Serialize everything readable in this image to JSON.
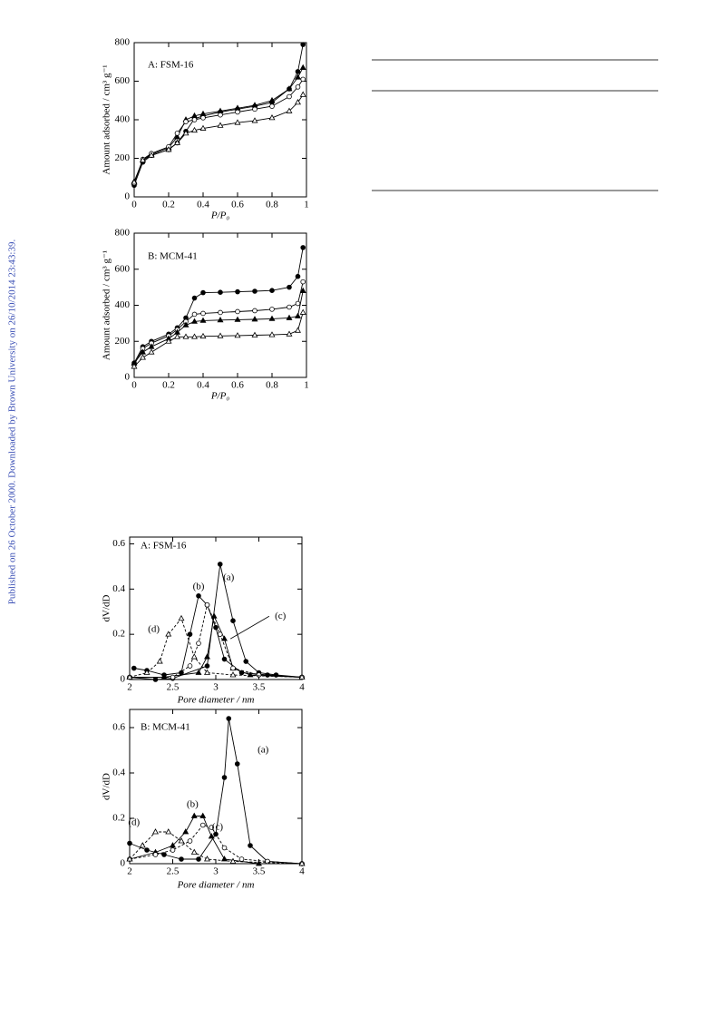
{
  "side_note": "Published on 26 October 2000. Downloaded by Brown University on 26/10/2014 23:43:39.",
  "chart_data": [
    {
      "type": "line",
      "title": "A: FSM-16",
      "xlabel": "P/P₀",
      "ylabel": "Amount adsorbed / cm³ g⁻¹",
      "xlim": [
        0,
        1
      ],
      "ylim": [
        0,
        800
      ],
      "xticks": [
        0,
        0.2,
        0.4,
        0.6,
        0.8,
        1
      ],
      "yticks": [
        0,
        200,
        400,
        600,
        800
      ],
      "series": [
        {
          "color": "#000000",
          "marker": "filled-circle",
          "dashed": false,
          "x": [
            0,
            0.05,
            0.1,
            0.2,
            0.25,
            0.3,
            0.35,
            0.4,
            0.5,
            0.6,
            0.7,
            0.8,
            0.9,
            0.95,
            0.98
          ],
          "values": [
            60,
            180,
            215,
            245,
            280,
            340,
            405,
            420,
            440,
            455,
            470,
            490,
            560,
            650,
            790
          ]
        },
        {
          "color": "#000000",
          "marker": "filled-triangle",
          "dashed": false,
          "x": [
            0,
            0.05,
            0.1,
            0.2,
            0.25,
            0.3,
            0.35,
            0.4,
            0.5,
            0.6,
            0.7,
            0.8,
            0.9,
            0.95,
            0.98
          ],
          "values": [
            80,
            190,
            220,
            255,
            310,
            400,
            420,
            430,
            445,
            460,
            475,
            500,
            560,
            620,
            670
          ]
        },
        {
          "color": "#000000",
          "marker": "open-circle",
          "dashed": false,
          "x": [
            0,
            0.05,
            0.1,
            0.2,
            0.25,
            0.3,
            0.35,
            0.4,
            0.5,
            0.6,
            0.7,
            0.8,
            0.9,
            0.95,
            0.98
          ],
          "values": [
            70,
            195,
            225,
            260,
            330,
            390,
            400,
            410,
            425,
            440,
            455,
            470,
            520,
            570,
            610
          ]
        },
        {
          "color": "#000000",
          "marker": "open-triangle",
          "dashed": false,
          "x": [
            0,
            0.05,
            0.1,
            0.2,
            0.25,
            0.3,
            0.35,
            0.4,
            0.5,
            0.6,
            0.7,
            0.8,
            0.9,
            0.95,
            0.98
          ],
          "values": [
            75,
            190,
            215,
            245,
            280,
            330,
            345,
            355,
            370,
            385,
            395,
            410,
            445,
            490,
            530
          ]
        }
      ]
    },
    {
      "type": "line",
      "title": "B: MCM-41",
      "xlabel": "P/P₀",
      "ylabel": "Amount adsorbed / cm³ g⁻¹",
      "xlim": [
        0,
        1
      ],
      "ylim": [
        0,
        800
      ],
      "xticks": [
        0,
        0.2,
        0.4,
        0.6,
        0.8,
        1
      ],
      "yticks": [
        0,
        200,
        400,
        600,
        800
      ],
      "series": [
        {
          "color": "#000000",
          "marker": "filled-circle",
          "dashed": false,
          "x": [
            0,
            0.05,
            0.1,
            0.2,
            0.25,
            0.3,
            0.35,
            0.4,
            0.5,
            0.6,
            0.7,
            0.8,
            0.9,
            0.95,
            0.98
          ],
          "values": [
            80,
            170,
            200,
            240,
            275,
            330,
            440,
            470,
            472,
            475,
            478,
            482,
            500,
            560,
            720
          ]
        },
        {
          "color": "#000000",
          "marker": "open-circle",
          "dashed": false,
          "x": [
            0,
            0.05,
            0.1,
            0.2,
            0.25,
            0.3,
            0.35,
            0.4,
            0.5,
            0.6,
            0.7,
            0.8,
            0.9,
            0.95,
            0.98
          ],
          "values": [
            70,
            160,
            190,
            230,
            265,
            310,
            350,
            355,
            360,
            365,
            370,
            378,
            390,
            410,
            530
          ]
        },
        {
          "color": "#000000",
          "marker": "filled-triangle",
          "dashed": false,
          "x": [
            0,
            0.05,
            0.1,
            0.2,
            0.25,
            0.3,
            0.35,
            0.4,
            0.5,
            0.6,
            0.7,
            0.8,
            0.9,
            0.95,
            0.98
          ],
          "values": [
            80,
            140,
            170,
            215,
            250,
            290,
            310,
            315,
            318,
            320,
            322,
            325,
            330,
            340,
            480
          ]
        },
        {
          "color": "#000000",
          "marker": "open-triangle",
          "dashed": false,
          "x": [
            0,
            0.05,
            0.1,
            0.2,
            0.25,
            0.3,
            0.35,
            0.4,
            0.5,
            0.6,
            0.7,
            0.8,
            0.9,
            0.95,
            0.98
          ],
          "values": [
            60,
            110,
            140,
            200,
            225,
            225,
            225,
            228,
            230,
            232,
            234,
            236,
            240,
            260,
            360
          ]
        }
      ]
    },
    {
      "type": "line",
      "title": "A: FSM-16",
      "xlabel": "Pore diameter / nm",
      "ylabel": "dV/dD",
      "xlim": [
        2,
        4
      ],
      "ylim": [
        0,
        0.63
      ],
      "xticks": [
        2,
        2.5,
        3,
        3.5,
        4
      ],
      "yticks": [
        0,
        0.2,
        0.4,
        0.6
      ],
      "annotations": [
        "(a)",
        "(b)",
        "(c)",
        "(d)"
      ],
      "series": [
        {
          "color": "#000000",
          "marker": "filled-circle",
          "dashed": false,
          "x": [
            2.0,
            2.3,
            2.5,
            2.9,
            3.05,
            3.2,
            3.35,
            3.5,
            3.7,
            4.0
          ],
          "values": [
            0.01,
            0.0,
            0.005,
            0.06,
            0.51,
            0.26,
            0.08,
            0.03,
            0.02,
            0.01
          ]
        },
        {
          "color": "#000000",
          "marker": "filled-circle",
          "dashed": false,
          "x": [
            2.05,
            2.2,
            2.4,
            2.6,
            2.7,
            2.8,
            2.9,
            3.0,
            3.1,
            3.3,
            3.6,
            4.0
          ],
          "values": [
            0.05,
            0.04,
            0.02,
            0.03,
            0.2,
            0.37,
            0.33,
            0.23,
            0.09,
            0.03,
            0.02,
            0.01
          ]
        },
        {
          "color": "#000000",
          "marker": "filled-triangle",
          "dashed": false,
          "x": [
            2.0,
            2.4,
            2.8,
            2.9,
            2.98,
            3.1,
            3.2,
            3.4,
            4.0
          ],
          "values": [
            0.01,
            0.01,
            0.03,
            0.1,
            0.28,
            0.18,
            0.05,
            0.02,
            0.01
          ]
        },
        {
          "color": "#000000",
          "marker": "open-circle",
          "dashed": true,
          "x": [
            2.0,
            2.5,
            2.7,
            2.8,
            2.9,
            3.05,
            3.2,
            3.5,
            4.0
          ],
          "values": [
            0.01,
            0.01,
            0.06,
            0.16,
            0.33,
            0.2,
            0.05,
            0.02,
            0.01
          ]
        },
        {
          "color": "#000000",
          "marker": "open-triangle",
          "dashed": true,
          "x": [
            2.0,
            2.2,
            2.35,
            2.45,
            2.6,
            2.75,
            2.9,
            3.2,
            4.0
          ],
          "values": [
            0.01,
            0.03,
            0.08,
            0.2,
            0.27,
            0.1,
            0.03,
            0.02,
            0.01
          ]
        }
      ]
    },
    {
      "type": "line",
      "title": "B: MCM-41",
      "xlabel": "Pore diameter / nm",
      "ylabel": "dV/dD",
      "xlim": [
        2,
        4
      ],
      "ylim": [
        0,
        0.68
      ],
      "xticks": [
        2,
        2.5,
        3,
        3.5,
        4
      ],
      "yticks": [
        0,
        0.2,
        0.4,
        0.6
      ],
      "annotations": [
        "(a)",
        "(b)",
        "(c)",
        "(d)"
      ],
      "series": [
        {
          "color": "#000000",
          "marker": "filled-circle",
          "dashed": false,
          "x": [
            2.0,
            2.2,
            2.4,
            2.6,
            2.8,
            3.0,
            3.1,
            3.15,
            3.25,
            3.4,
            3.6,
            4.0
          ],
          "values": [
            0.09,
            0.06,
            0.04,
            0.02,
            0.02,
            0.13,
            0.38,
            0.64,
            0.44,
            0.08,
            0.01,
            0.0
          ]
        },
        {
          "color": "#000000",
          "marker": "filled-triangle",
          "dashed": false,
          "x": [
            2.0,
            2.3,
            2.5,
            2.65,
            2.75,
            2.85,
            2.95,
            3.1,
            3.5,
            4.0
          ],
          "values": [
            0.02,
            0.05,
            0.08,
            0.14,
            0.21,
            0.21,
            0.12,
            0.02,
            0.0,
            0.0
          ]
        },
        {
          "color": "#000000",
          "marker": "open-circle",
          "dashed": true,
          "x": [
            2.0,
            2.3,
            2.5,
            2.7,
            2.85,
            2.95,
            3.1,
            3.3,
            3.6,
            4.0
          ],
          "values": [
            0.02,
            0.04,
            0.06,
            0.1,
            0.17,
            0.16,
            0.07,
            0.02,
            0.01,
            0.0
          ]
        },
        {
          "color": "#000000",
          "marker": "open-triangle",
          "dashed": true,
          "x": [
            2.0,
            2.15,
            2.3,
            2.45,
            2.6,
            2.75,
            2.9,
            3.2,
            4.0
          ],
          "values": [
            0.02,
            0.08,
            0.14,
            0.14,
            0.1,
            0.05,
            0.02,
            0.01,
            0.0
          ]
        }
      ]
    }
  ]
}
